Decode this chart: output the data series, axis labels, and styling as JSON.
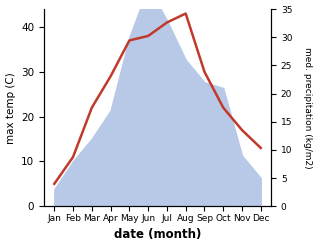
{
  "months": [
    "Jan",
    "Feb",
    "Mar",
    "Apr",
    "May",
    "Jun",
    "Jul",
    "Aug",
    "Sep",
    "Oct",
    "Nov",
    "Dec"
  ],
  "temperature": [
    5,
    11,
    22,
    29,
    37,
    38,
    41,
    43,
    30,
    22,
    17,
    13
  ],
  "precipitation": [
    3,
    8,
    12,
    17,
    30,
    39,
    33,
    26,
    22,
    21,
    9,
    5
  ],
  "temp_color": "#c0392b",
  "precip_color_fill": "#b8c9e8",
  "temp_ylim": [
    0,
    44
  ],
  "temp_yticks": [
    0,
    10,
    20,
    30,
    40
  ],
  "precip_ylim": [
    0,
    35
  ],
  "precip_yticks": [
    0,
    5,
    10,
    15,
    20,
    25,
    30,
    35
  ],
  "xlabel": "date (month)",
  "ylabel_left": "max temp (C)",
  "ylabel_right": "med. precipitation (kg/m2)",
  "background_color": "#ffffff",
  "line_width": 1.8
}
